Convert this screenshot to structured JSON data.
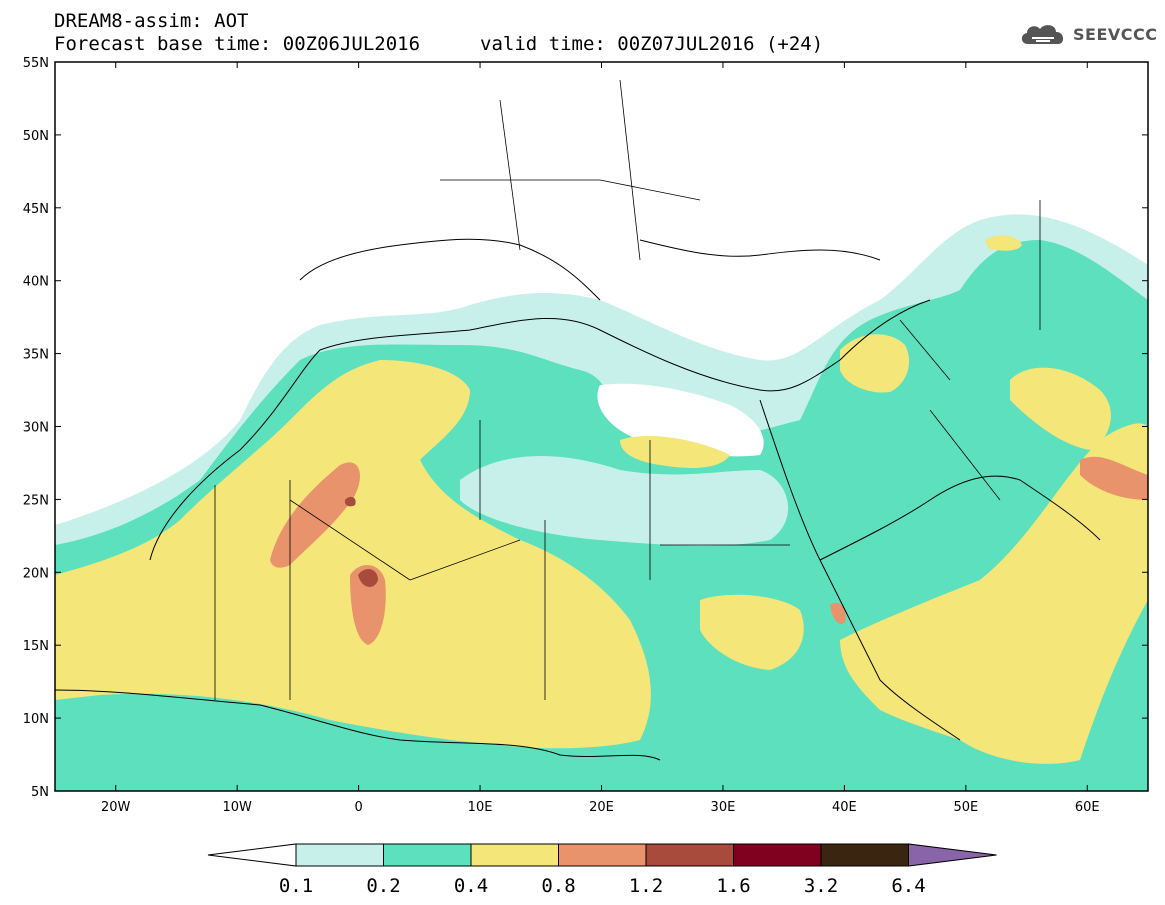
{
  "header": {
    "title": "DREAM8-assim: AOT",
    "base_time": "Forecast base time: 00Z06JUL2016",
    "valid_time": "valid time: 00Z07JUL2016 (+24)"
  },
  "logo": {
    "text": "SEEVCCC",
    "icon": "cloud-icon"
  },
  "map": {
    "lon_range": [
      -25,
      65
    ],
    "lat_range": [
      5,
      55
    ],
    "lon_ticks": [
      {
        "value": -20,
        "label": "20W"
      },
      {
        "value": -10,
        "label": "10W"
      },
      {
        "value": 0,
        "label": "0"
      },
      {
        "value": 10,
        "label": "10E"
      },
      {
        "value": 20,
        "label": "20E"
      },
      {
        "value": 30,
        "label": "30E"
      },
      {
        "value": 40,
        "label": "40E"
      },
      {
        "value": 50,
        "label": "50E"
      },
      {
        "value": 60,
        "label": "60E"
      }
    ],
    "lat_ticks": [
      {
        "value": 55,
        "label": "55N"
      },
      {
        "value": 50,
        "label": "50N"
      },
      {
        "value": 45,
        "label": "45N"
      },
      {
        "value": 40,
        "label": "40N"
      },
      {
        "value": 35,
        "label": "35N"
      },
      {
        "value": 30,
        "label": "30N"
      },
      {
        "value": 25,
        "label": "25N"
      },
      {
        "value": 20,
        "label": "20N"
      },
      {
        "value": 15,
        "label": "15N"
      },
      {
        "value": 10,
        "label": "10N"
      },
      {
        "value": 5,
        "label": "5N"
      }
    ]
  },
  "colorbar": {
    "bins": [
      {
        "color": "#c8f0ea"
      },
      {
        "color": "#5ce0bd"
      },
      {
        "color": "#f5e67a"
      },
      {
        "color": "#e8936b"
      },
      {
        "color": "#a84a3c"
      },
      {
        "color": "#800020"
      },
      {
        "color": "#3a2510"
      }
    ],
    "over_color": "#8a64a8",
    "under_color": "#ffffff",
    "labels": [
      "0.1",
      "0.2",
      "0.4",
      "0.8",
      "1.2",
      "1.6",
      "3.2",
      "6.4"
    ]
  }
}
